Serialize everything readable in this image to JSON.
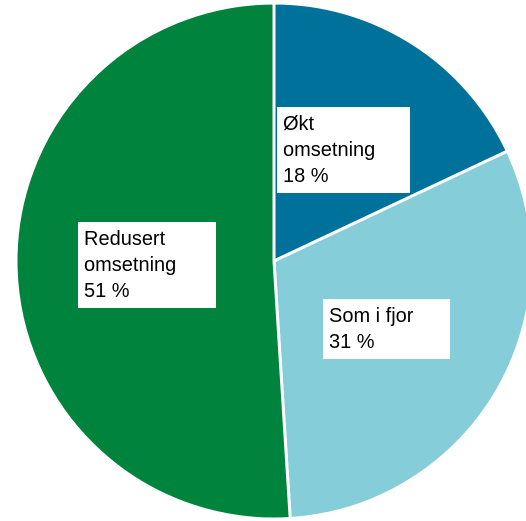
{
  "chart_data": {
    "type": "pie",
    "categories": [
      "Økt omsetning",
      "Som i fjor",
      "Redusert omsetning"
    ],
    "values": [
      18,
      31,
      51
    ],
    "value_labels": [
      "18 %",
      "31 %",
      "51 %"
    ],
    "colors": [
      "#00719a",
      "#85cdd9",
      "#00843d"
    ]
  }
}
